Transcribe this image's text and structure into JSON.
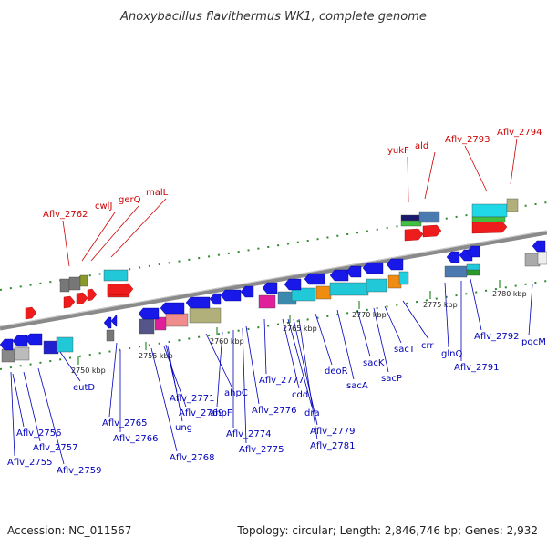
{
  "title": "Anoxybacillus flavithermus WK1, complete genome",
  "footer": {
    "accession": "Accession: NC_011567",
    "summary": "Topology: circular; Length: 2,846,746 bp; Genes: 2,932"
  },
  "colors": {
    "forward_label": "#cc0000",
    "reverse_label": "#0000bb",
    "backbone": "#8a8a8a",
    "dots": "#2d8a2d"
  },
  "ticks": [
    "2750 kbp",
    "2755 kbp",
    "2760 kbp",
    "2765 kbp",
    "2770 kbp",
    "2775 kbp",
    "2780 kbp"
  ],
  "forward_genes": [
    "Aflv_2762",
    "cwlJ",
    "gerQ",
    "malL",
    "yukF",
    "ald",
    "Aflv_2793",
    "Aflv_2794"
  ],
  "reverse_genes": [
    "eutD",
    "Aflv_2756",
    "Aflv_2757",
    "Aflv_2755",
    "Aflv_2759",
    "Aflv_2765",
    "Aflv_2766",
    "Aflv_2768",
    "Aflv_2769",
    "ung",
    "Aflv_2771",
    "ahpC",
    "ahpF",
    "Aflv_2774",
    "Aflv_2775",
    "Aflv_2776",
    "Aflv_2777",
    "cdd",
    "dra",
    "Aflv_2779",
    "Aflv_2781",
    "deoR",
    "sacA",
    "sacK",
    "sacP",
    "sacT",
    "crr",
    "glnQ",
    "Aflv_2791",
    "Aflv_2792",
    "pgcM"
  ]
}
